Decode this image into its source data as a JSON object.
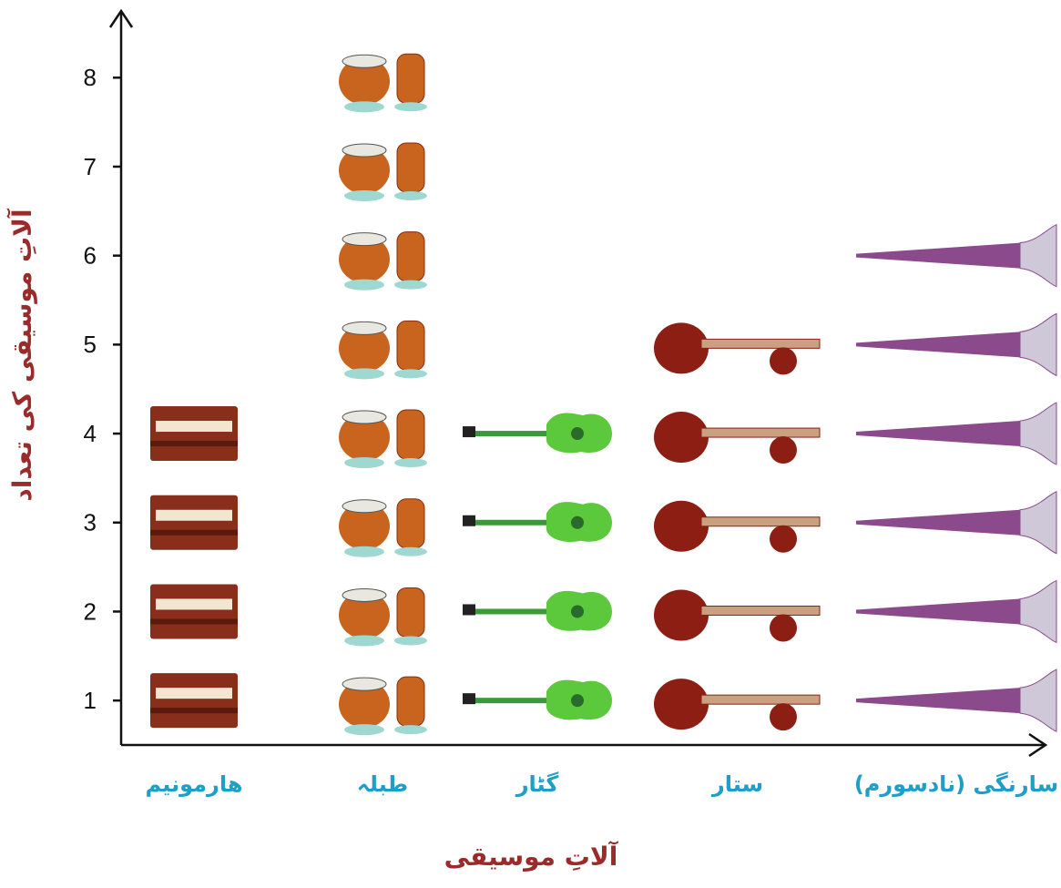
{
  "chart_data": {
    "type": "pictograph",
    "x_label": "آلاتِ موسیقی",
    "y_label": "آلاتِ موسیقی کی تعداد",
    "categories": [
      "هارمونیم",
      "طبلہ",
      "گٹار",
      "ستار",
      "سارنگی (نادسورم)"
    ],
    "values": [
      4,
      8,
      4,
      5,
      6
    ],
    "colors": [
      "#8a2e1c",
      "#c8641e",
      "#5cc83c",
      "#8c1e14",
      "#8a4a8c"
    ],
    "ylim": [
      0.5,
      8.75
    ],
    "yticks": [
      1,
      2,
      3,
      4,
      5,
      6,
      7,
      8
    ]
  }
}
